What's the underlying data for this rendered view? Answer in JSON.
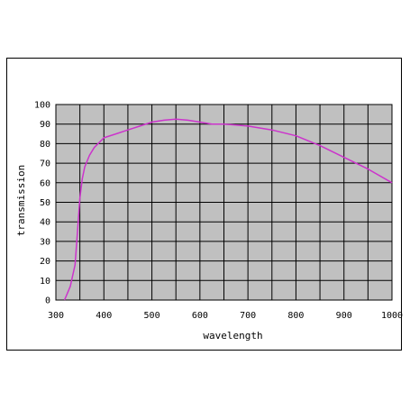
{
  "chart_data": {
    "type": "line",
    "title": "",
    "xlabel": "wavelength",
    "ylabel": "transmission",
    "xlim": [
      300,
      1000
    ],
    "ylim": [
      0,
      100
    ],
    "x_ticks": [
      300,
      400,
      500,
      600,
      700,
      800,
      900,
      1000
    ],
    "y_ticks": [
      0,
      10,
      20,
      30,
      40,
      50,
      60,
      70,
      80,
      90,
      100
    ],
    "grid": true,
    "legend": "none",
    "plot_background": "#c0c0c0",
    "grid_color": "#000000",
    "series": [
      {
        "color": "#cc33cc",
        "x": [
          318,
          330,
          340,
          345,
          350,
          355,
          360,
          370,
          380,
          400,
          425,
          450,
          475,
          500,
          525,
          550,
          575,
          600,
          625,
          650,
          700,
          750,
          800,
          850,
          900,
          950,
          1000
        ],
        "y": [
          0,
          7,
          18,
          35,
          52,
          62,
          68,
          74,
          78,
          83,
          85,
          87,
          89,
          91,
          92,
          92.5,
          92,
          91,
          90,
          90,
          89,
          87,
          84,
          79,
          73,
          67,
          60
        ]
      }
    ]
  }
}
